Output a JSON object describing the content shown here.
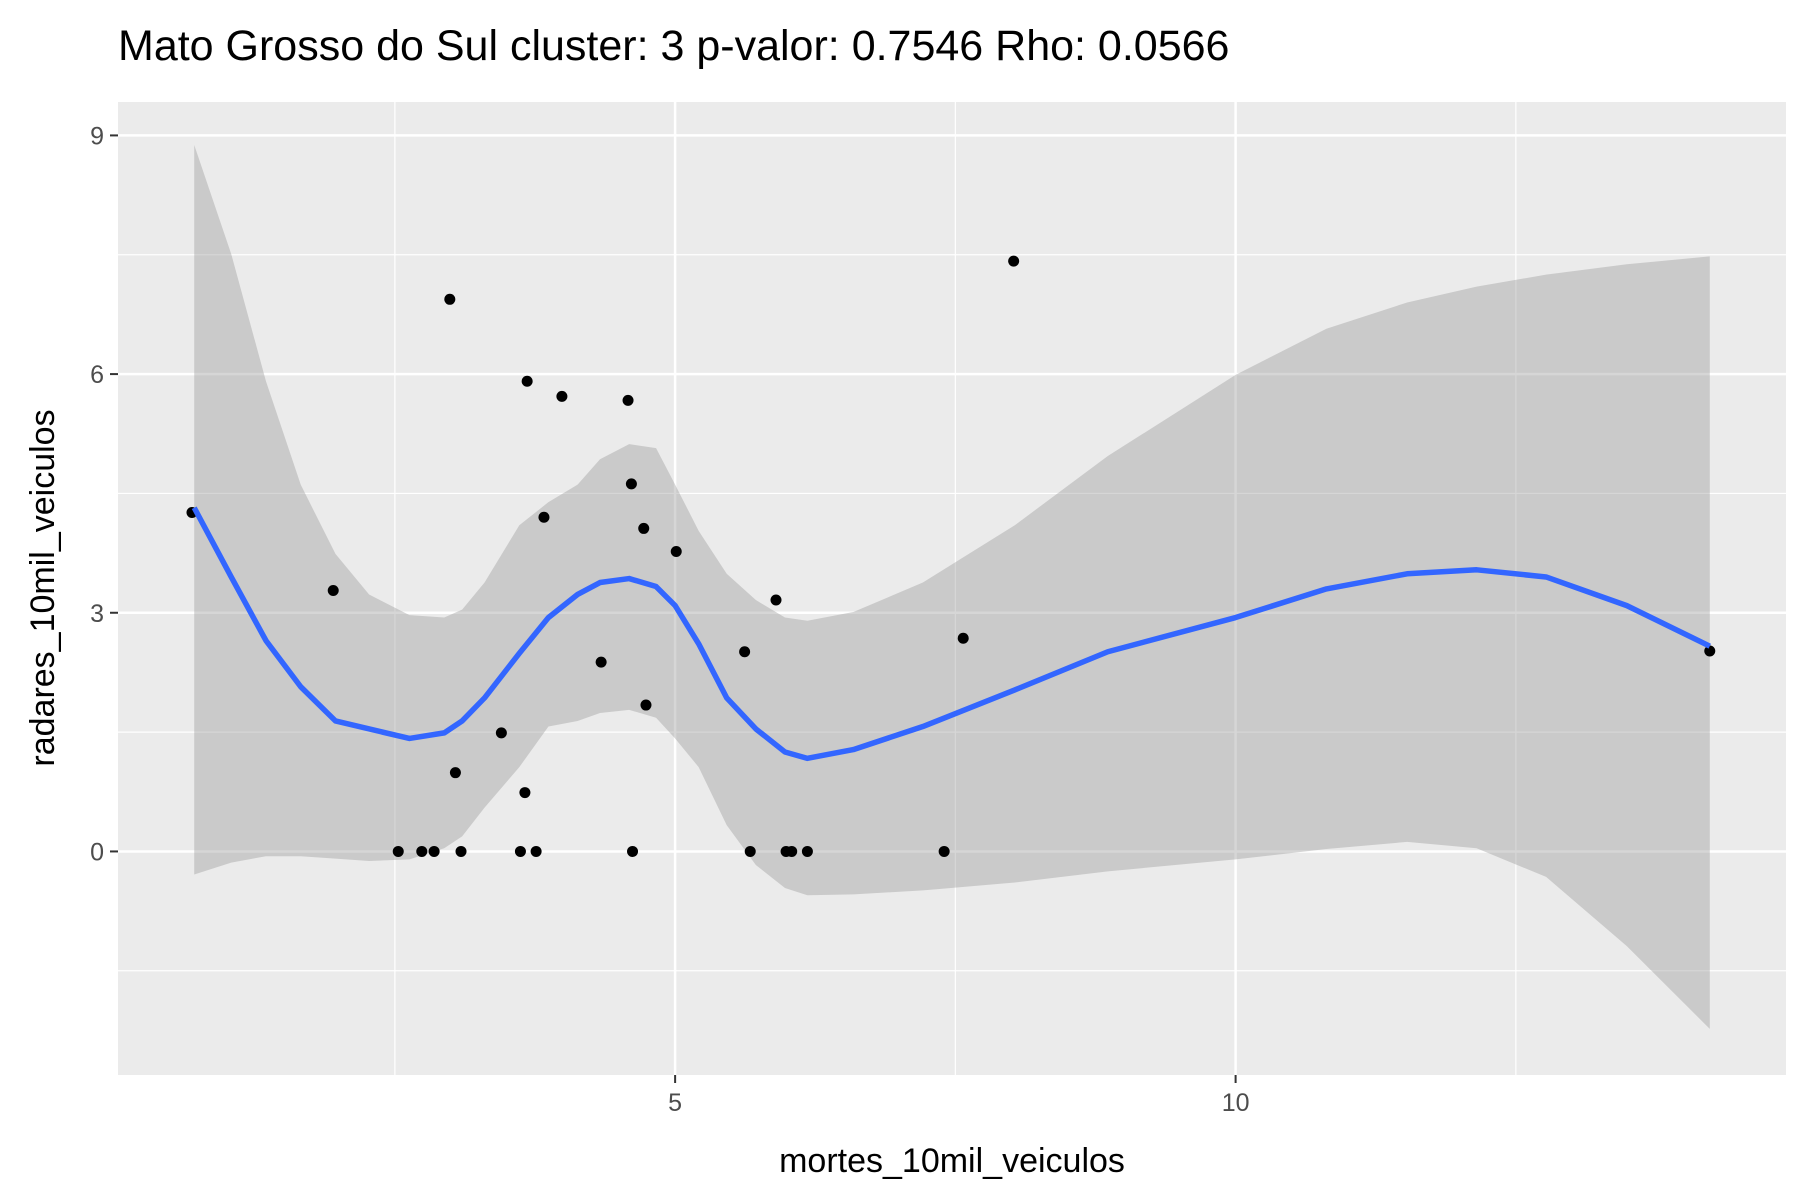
{
  "chart_data": {
    "type": "scatter",
    "title": "Mato Grosso do Sul cluster: 3 p-valor: 0.7546 Rho: 0.0566",
    "x_label": "mortes_10mil_veiculos",
    "y_label": "radares_10mil_veiculos",
    "xlim": [
      0.03,
      14.91
    ],
    "ylim": [
      -2.81,
      9.42
    ],
    "xticks": [
      5,
      10
    ],
    "yticks": [
      0,
      3,
      6,
      9
    ],
    "x_minor_grid": [
      2.5,
      7.5,
      12.5
    ],
    "y_minor_grid": [
      -1.5,
      1.5,
      4.5,
      7.5
    ],
    "grid": true,
    "points": {
      "color": "#000000",
      "x": [
        0.69,
        1.95,
        2.99,
        2.53,
        2.74,
        2.85,
        3.09,
        3.04,
        3.45,
        3.68,
        3.66,
        3.62,
        3.76,
        3.83,
        3.99,
        4.34,
        4.58,
        4.61,
        4.62,
        4.72,
        4.74,
        5.01,
        5.62,
        5.67,
        5.9,
        5.99,
        6.04,
        6.18,
        7.4,
        7.57,
        8.02,
        14.23
      ],
      "y": [
        4.26,
        3.28,
        6.94,
        0,
        0,
        0,
        0,
        0.99,
        1.49,
        5.91,
        0.74,
        0,
        0,
        4.2,
        5.72,
        2.38,
        5.67,
        4.62,
        0,
        4.06,
        1.84,
        3.77,
        2.51,
        0,
        3.16,
        0,
        0,
        0,
        0,
        2.68,
        7.42,
        2.52
      ]
    },
    "smooth": {
      "color": "#3366FF",
      "x": [
        0.71,
        1.04,
        1.35,
        1.66,
        1.97,
        2.63,
        2.94,
        3.1,
        3.3,
        3.61,
        3.87,
        4.13,
        4.33,
        4.59,
        4.83,
        5.0,
        5.21,
        5.46,
        5.72,
        5.98,
        6.18,
        6.59,
        7.21,
        8.03,
        8.86,
        10,
        10.81,
        11.53,
        12.15,
        12.77,
        13.49,
        14.23
      ],
      "y": [
        4.32,
        3.45,
        2.65,
        2.07,
        1.64,
        1.42,
        1.49,
        1.64,
        1.93,
        2.49,
        2.94,
        3.23,
        3.38,
        3.43,
        3.33,
        3.09,
        2.61,
        1.93,
        1.54,
        1.25,
        1.17,
        1.28,
        1.57,
        2.03,
        2.51,
        2.94,
        3.3,
        3.49,
        3.54,
        3.45,
        3.09,
        2.58
      ]
    },
    "band": {
      "color": "#999999",
      "x": [
        0.71,
        1.04,
        1.35,
        1.66,
        1.97,
        2.27,
        2.63,
        2.94,
        3.1,
        3.3,
        3.61,
        3.87,
        4.13,
        4.33,
        4.59,
        4.83,
        5.0,
        5.21,
        5.46,
        5.72,
        5.98,
        6.18,
        6.59,
        7.21,
        8.03,
        8.86,
        10,
        10.81,
        11.53,
        12.15,
        12.77,
        13.49,
        14.23
      ],
      "upper": [
        8.88,
        7.51,
        5.91,
        4.61,
        3.74,
        3.23,
        2.97,
        2.94,
        3.04,
        3.38,
        4.1,
        4.39,
        4.61,
        4.93,
        5.12,
        5.07,
        4.61,
        4.03,
        3.49,
        3.16,
        2.94,
        2.9,
        3.01,
        3.38,
        4.1,
        4.97,
        5.99,
        6.57,
        6.9,
        7.1,
        7.25,
        7.38,
        7.48
      ],
      "lower": [
        -0.29,
        -0.14,
        -0.06,
        -0.06,
        -0.09,
        -0.12,
        -0.1,
        0.04,
        0.19,
        0.55,
        1.06,
        1.57,
        1.64,
        1.74,
        1.78,
        1.68,
        1.42,
        1.06,
        0.33,
        -0.17,
        -0.46,
        -0.55,
        -0.54,
        -0.49,
        -0.39,
        -0.25,
        -0.1,
        0.03,
        0.12,
        0.04,
        -0.32,
        -1.19,
        -2.23
      ]
    }
  }
}
